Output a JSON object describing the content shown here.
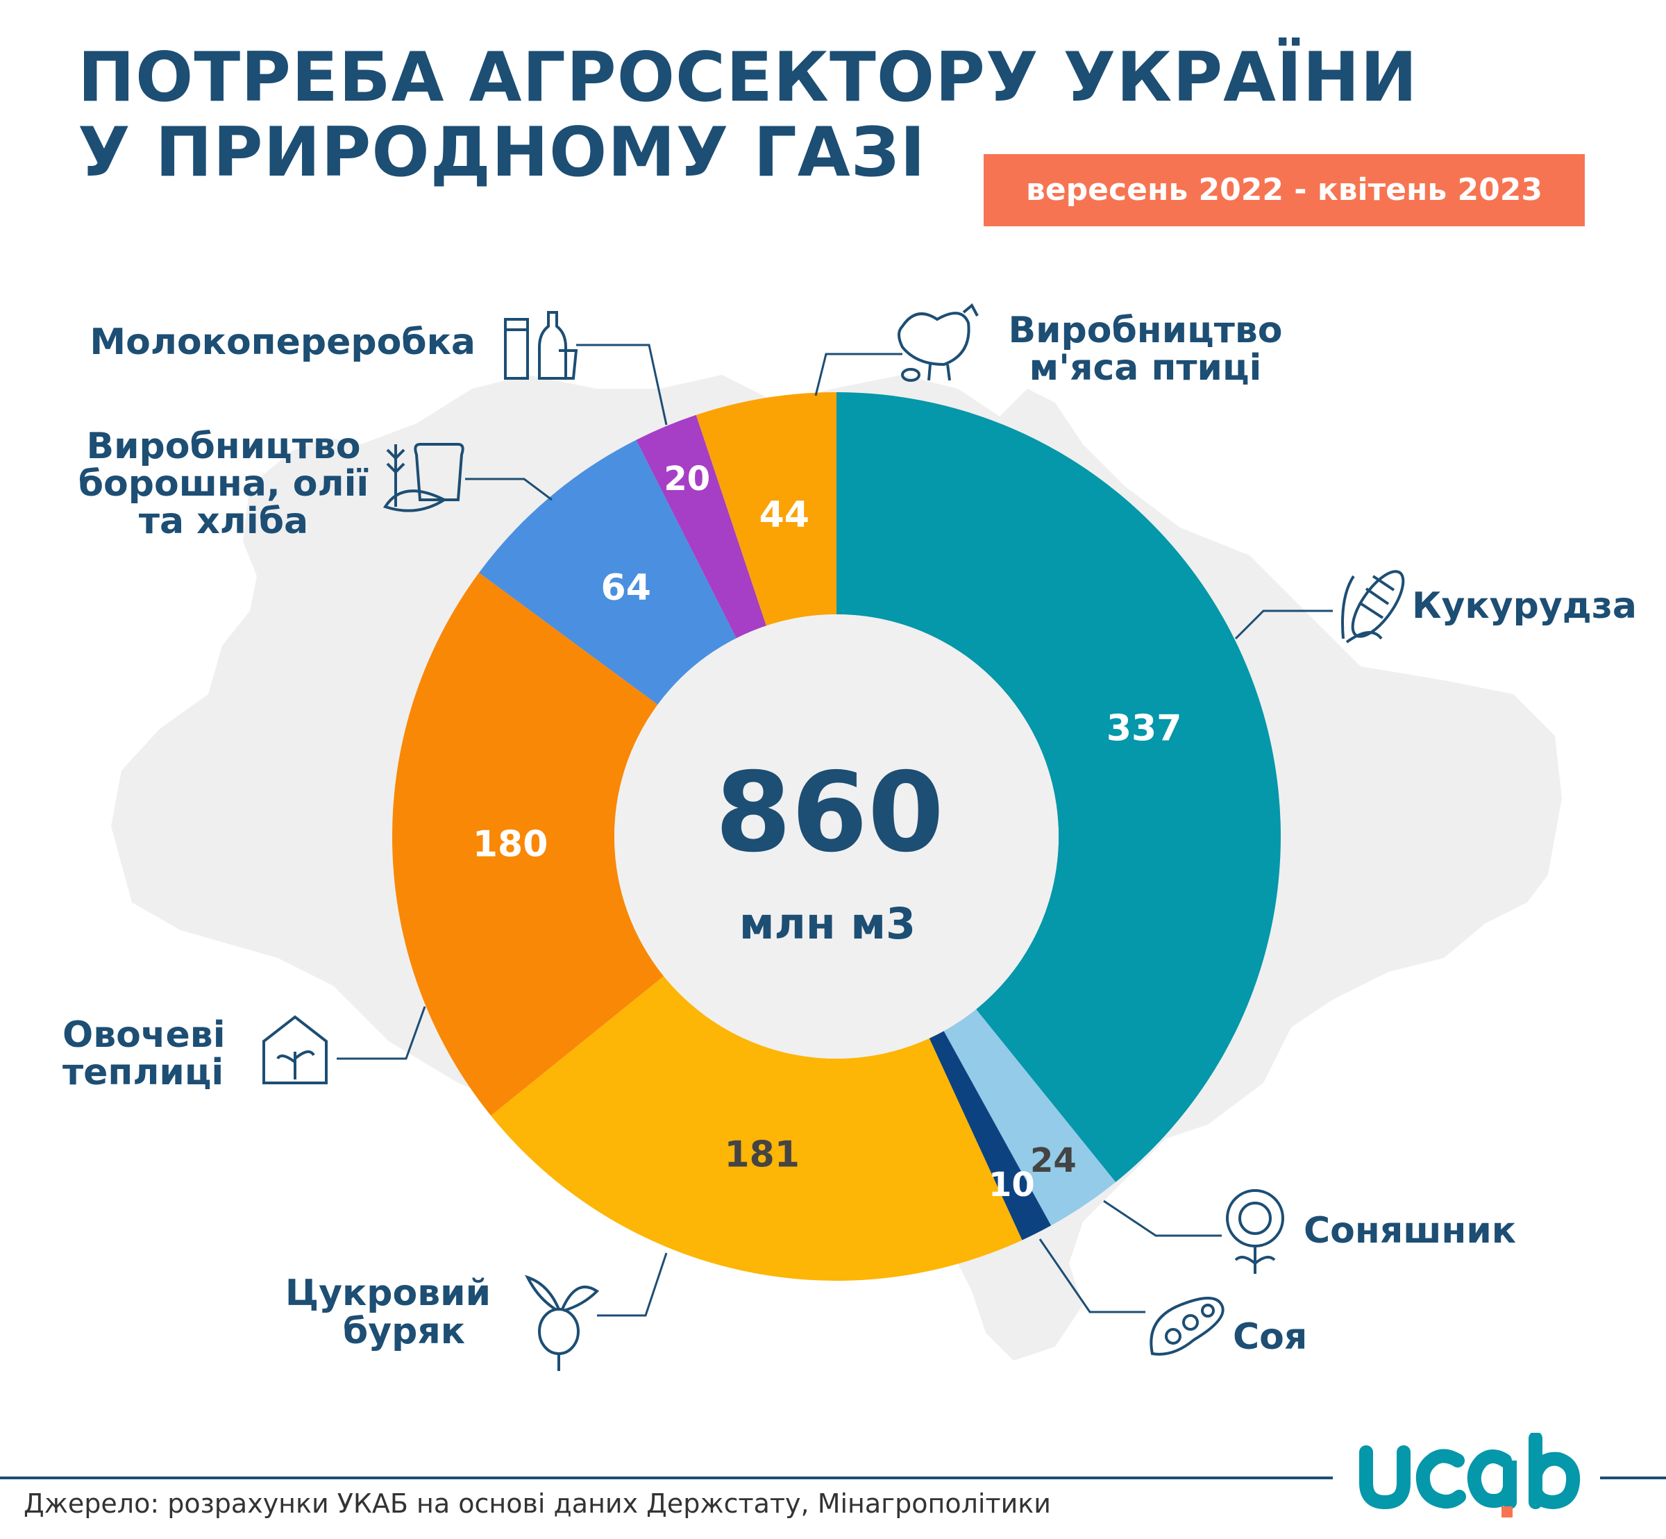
{
  "title": {
    "line1": "ПОТРЕБА АГРОСЕКТОРУ УКРАЇНИ",
    "line2": "У ПРИРОДНОМУ ГАЗІ"
  },
  "period": "вересень 2022 - квітень 2023",
  "center": {
    "total": "860",
    "unit": "млн м3"
  },
  "source": "Джерело: розрахунки УКАБ на основі даних Держстату, Мінагрополітики",
  "logo": "ucab",
  "colors": {
    "title": "#1d4e74",
    "period_bg": "#f77452",
    "map": "#efefef",
    "line": "#1d4e74"
  },
  "chart_data": {
    "type": "pie",
    "donut": true,
    "total": 860,
    "unit": "млн м3",
    "categories": [
      "Кукурудза",
      "Соняшник",
      "Соя",
      "Цукровий буряк",
      "Овочеві теплиці",
      "Виробництво борошна, олії та хліба",
      "Молокопереробка",
      "Виробництво м'яса птиці"
    ],
    "values": [
      337,
      24,
      10,
      181,
      180,
      64,
      20,
      44
    ],
    "colors": [
      "#0597aa",
      "#93cbe8",
      "#0d4280",
      "#fdb506",
      "#f98806",
      "#4b8fe0",
      "#a63ec6",
      "#fba305"
    ],
    "label_colors": [
      "#ffffff",
      "#444444",
      "#ffffff",
      "#444444",
      "#ffffff",
      "#ffffff",
      "#ffffff",
      "#ffffff"
    ],
    "icons": [
      "corn-icon",
      "sunflower-icon",
      "soybean-icon",
      "beet-icon",
      "greenhouse-icon",
      "bread-wheat-icon",
      "milk-icon",
      "chicken-icon"
    ]
  }
}
